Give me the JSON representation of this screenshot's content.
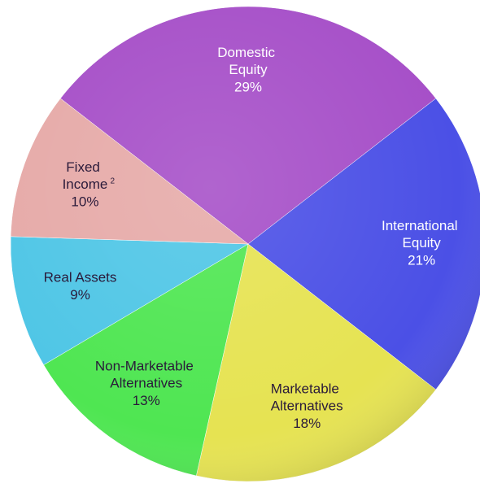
{
  "chart_data": {
    "type": "pie",
    "categories": [
      "Domestic Equity",
      "International Equity",
      "Marketable Alternatives",
      "Non-Marketable Alternatives",
      "Real Assets",
      "Fixed Income"
    ],
    "values": [
      29,
      21,
      18,
      13,
      9,
      10
    ],
    "value_labels": [
      "29%",
      "21%",
      "18%",
      "13%",
      "9%",
      "10%"
    ],
    "footnotes": [
      null,
      null,
      null,
      null,
      null,
      "2"
    ],
    "colors": [
      "#a64fc8",
      "#4b50e6",
      "#e6e352",
      "#4fe652",
      "#4fc6e6",
      "#e6aaa8"
    ]
  }
}
